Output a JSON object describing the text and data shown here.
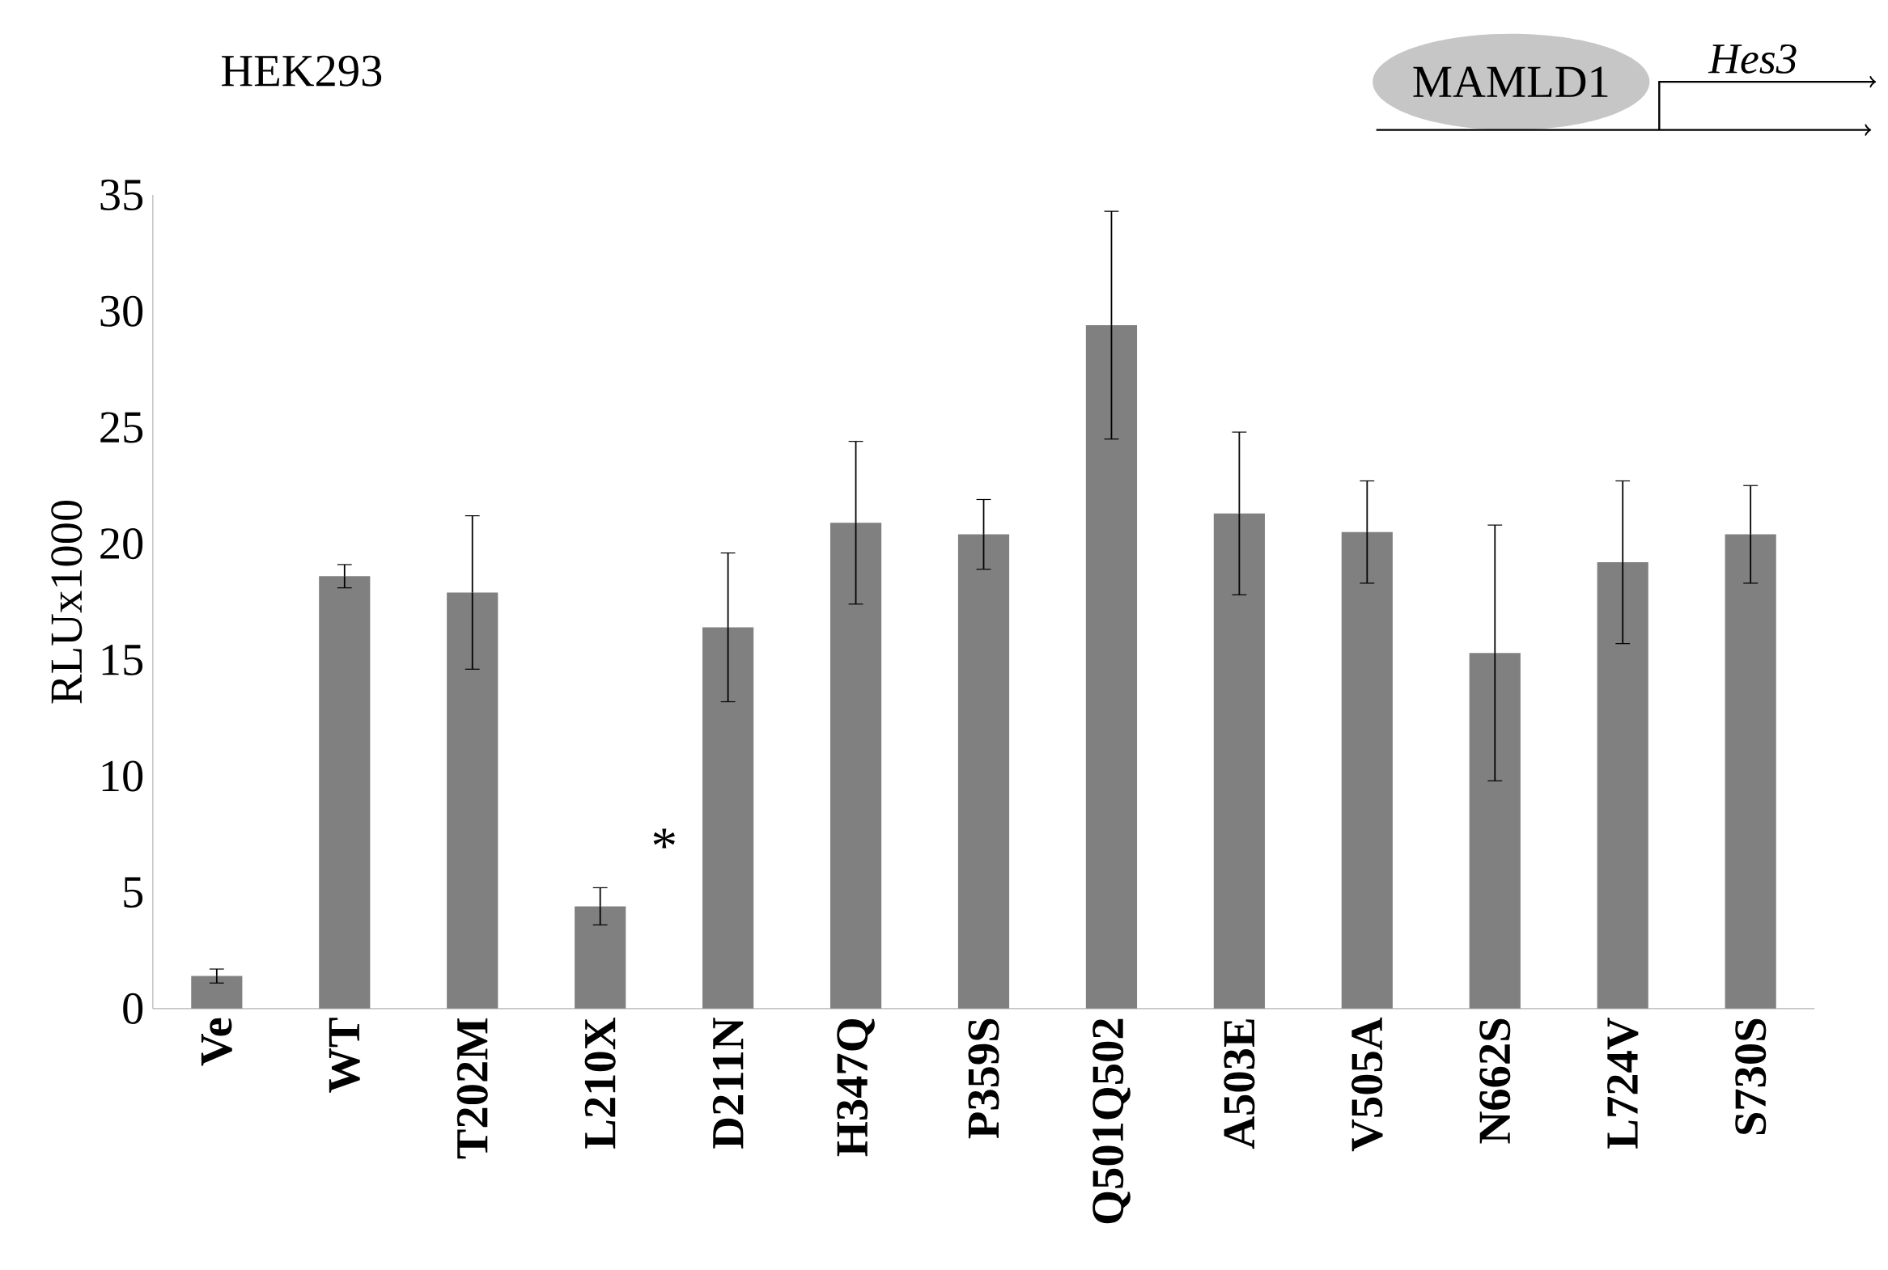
{
  "chart_data": {
    "type": "bar",
    "title": "HEK293",
    "ylabel": "RLUx1000",
    "categories": [
      "Ve",
      "WT",
      "T202M",
      "L210X",
      "D211N",
      "H347Q",
      "P359S",
      "Q501Q502",
      "A503E",
      "V505A",
      "N662S",
      "L724V",
      "S730S"
    ],
    "values": [
      1.4,
      18.6,
      17.9,
      4.4,
      16.4,
      20.9,
      20.4,
      29.4,
      21.3,
      20.5,
      15.3,
      19.2,
      20.4
    ],
    "errors": [
      0.3,
      0.5,
      3.3,
      0.8,
      3.2,
      3.5,
      1.5,
      4.9,
      3.5,
      2.2,
      5.5,
      3.5,
      2.1
    ],
    "color": "#808080",
    "ylim": [
      0,
      35
    ],
    "yticks": [
      0,
      5,
      10,
      15,
      20,
      25,
      30,
      35
    ],
    "grid": false,
    "annotations": [
      "*",
      "MAMLD1",
      "Hes3"
    ]
  }
}
